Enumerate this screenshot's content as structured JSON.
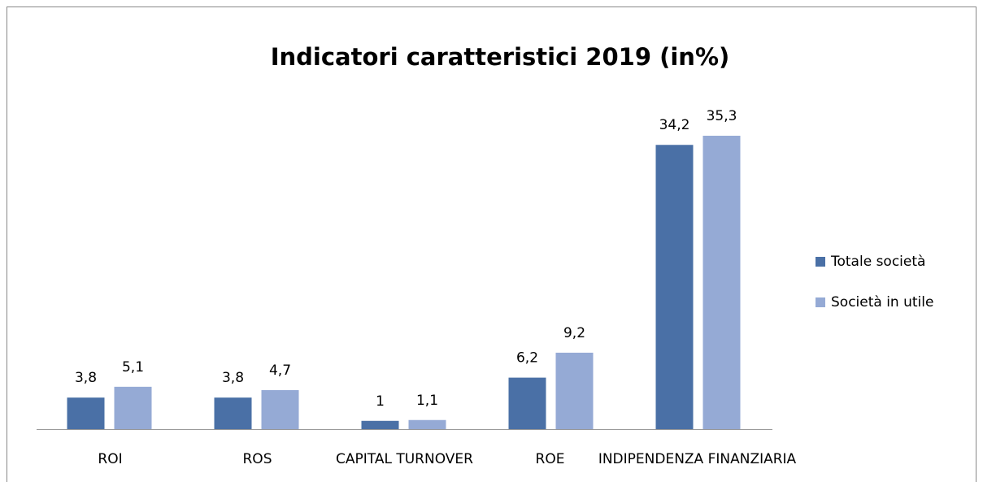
{
  "chart_data": {
    "type": "bar",
    "title": "Indicatori caratteristici 2019 (in%)",
    "categories": [
      "ROI",
      "ROS",
      "CAPITAL TURNOVER",
      "ROE",
      "INDIPENDENZA FINANZIARIA"
    ],
    "series": [
      {
        "name": "Totale società",
        "color": "#4a70a6",
        "values": [
          3.8,
          3.8,
          1,
          6.2,
          34.2
        ],
        "value_labels": [
          "3,8",
          "3,8",
          "1",
          "6,2",
          "34,2"
        ]
      },
      {
        "name": "Società in utile",
        "color": "#95aad5",
        "values": [
          5.1,
          4.7,
          1.1,
          9.2,
          35.3
        ],
        "value_labels": [
          "5,1",
          "4,7",
          "1,1",
          "9,2",
          "35,3"
        ]
      }
    ],
    "legend": "right"
  }
}
